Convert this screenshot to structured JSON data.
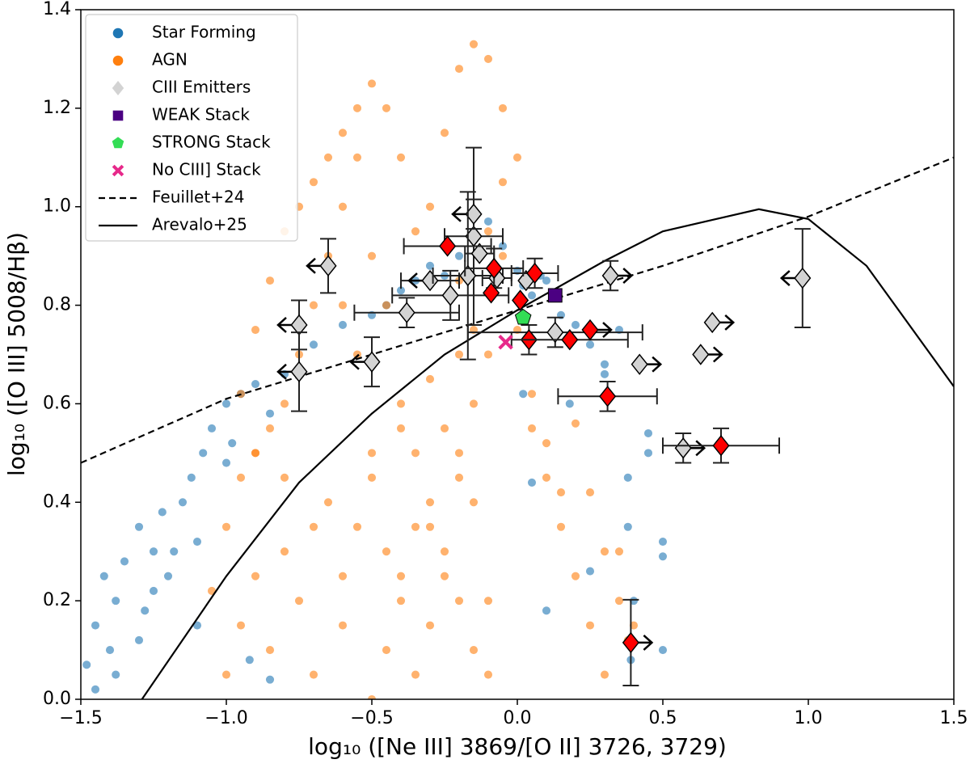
{
  "chart_data": {
    "type": "scatter",
    "x_label": "log₁₀ ([Ne III] 3869/[O II] 3726, 3729)",
    "y_label": "log₁₀ ([O III] 5008/Hβ)",
    "xlim": [
      -1.5,
      1.5
    ],
    "ylim": [
      0,
      1.4
    ],
    "xticks": [
      {
        "value": -1.5,
        "label": "−1.5"
      },
      {
        "value": -1.0,
        "label": "−1.0"
      },
      {
        "value": -0.5,
        "label": "−0.5"
      },
      {
        "value": 0,
        "label": "0.0"
      },
      0.5,
      {
        "value": 1,
        "label": "1.0"
      },
      1.5
    ],
    "yticks": [
      {
        "value": 0,
        "label": "0.0"
      },
      0.2,
      0.4,
      0.6,
      0.8,
      {
        "value": 1,
        "label": "1.0"
      },
      1.2,
      1.4
    ],
    "legend": "upper left",
    "series": [
      {
        "name": "Star Forming",
        "type": "scatter",
        "marker": "circle",
        "color": "#1f77b4",
        "x": [
          -1.48,
          -1.45,
          -1.42,
          -1.4,
          -1.38,
          -1.35,
          -1.3,
          -1.28,
          -1.25,
          -1.22,
          -1.2,
          -1.15,
          -1.12,
          -1.1,
          -1.08,
          -1.05,
          -1.0,
          -0.98,
          -0.95,
          -0.9,
          -0.85,
          -0.8,
          -0.7,
          -0.6,
          -0.5,
          -0.45,
          -0.4,
          -0.35,
          -0.3,
          -0.25,
          -0.2,
          -0.15,
          -0.1,
          -0.05,
          0.0,
          0.02,
          0.05,
          0.08,
          0.1,
          0.15,
          0.2,
          0.25,
          0.3,
          0.35,
          0.38,
          0.4,
          0.45,
          0.5,
          0.02,
          0.05,
          0.1,
          0.18,
          0.25,
          0.3,
          0.38,
          0.39,
          0.45,
          0.5,
          0.5,
          -1.45,
          -1.38,
          -1.3,
          -1.25,
          -1.18,
          -1.1,
          -1.0,
          -0.92,
          -0.85
        ],
        "values": [
          0.07,
          0.15,
          0.25,
          0.1,
          0.2,
          0.28,
          0.35,
          0.18,
          0.3,
          0.38,
          0.25,
          0.4,
          0.45,
          0.32,
          0.5,
          0.55,
          0.6,
          0.52,
          0.62,
          0.64,
          0.58,
          0.66,
          0.72,
          0.76,
          0.78,
          0.8,
          0.83,
          0.85,
          0.88,
          0.86,
          0.9,
          0.95,
          0.97,
          0.92,
          0.87,
          0.84,
          0.82,
          0.86,
          0.85,
          0.78,
          0.76,
          0.72,
          0.68,
          0.75,
          0.35,
          0.2,
          0.54,
          0.32,
          0.62,
          0.44,
          0.18,
          0.6,
          0.26,
          0.66,
          0.45,
          0.08,
          0.5,
          0.29,
          0.1,
          0.02,
          0.05,
          0.12,
          0.22,
          0.3,
          0.15,
          0.48,
          0.08,
          0.04
        ]
      },
      {
        "name": "AGN",
        "type": "scatter",
        "marker": "circle",
        "color": "#ff7f0e",
        "x": [
          -1.0,
          -0.95,
          -0.9,
          -0.85,
          -0.8,
          -0.75,
          -0.7,
          -0.65,
          -0.6,
          -0.55,
          -1.0,
          -0.95,
          -0.9,
          -0.85,
          -0.8,
          -0.75,
          -0.7,
          -0.65,
          -0.6,
          -0.55,
          -1.05,
          -0.95,
          -0.9,
          -0.85,
          -0.8,
          -0.75,
          -0.7,
          -0.65,
          -0.6,
          -0.55,
          -0.5,
          -0.45,
          -0.4,
          -0.35,
          -0.3,
          -0.25,
          -0.2,
          -0.15,
          -0.1,
          -0.05,
          -0.5,
          -0.45,
          -0.4,
          -0.35,
          -0.3,
          -0.25,
          -0.2,
          -0.15,
          -0.1,
          -0.05,
          -0.5,
          -0.45,
          -0.4,
          -0.35,
          -0.3,
          -0.25,
          -0.2,
          -0.15,
          -0.1,
          -0.05,
          0.0,
          0.05,
          0.1,
          0.15,
          0.2,
          0.25,
          0.3,
          0.35,
          0.4,
          -0.2,
          -0.6,
          -0.55,
          -0.5,
          -0.45,
          -0.4,
          -0.35,
          -0.3,
          -0.25,
          -0.2,
          -0.15,
          -0.9,
          -0.8,
          -0.7,
          -0.6,
          -0.5,
          -0.4,
          -0.3,
          -0.2,
          -0.1,
          0.0,
          0.05,
          0.1,
          0.15,
          0.2,
          0.25,
          0.3,
          0.35,
          0.38,
          -0.15,
          -0.1
        ],
        "values": [
          0.05,
          0.15,
          0.25,
          0.1,
          0.3,
          0.2,
          0.05,
          0.4,
          0.15,
          0.35,
          0.35,
          0.45,
          0.5,
          0.55,
          0.6,
          0.7,
          0.8,
          0.9,
          1.0,
          1.1,
          0.22,
          0.62,
          0.75,
          0.85,
          0.95,
          1.0,
          1.05,
          1.1,
          1.15,
          1.2,
          1.25,
          1.2,
          1.1,
          0.95,
          1.0,
          1.15,
          1.28,
          1.33,
          1.3,
          1.2,
          0.9,
          0.8,
          0.6,
          0.5,
          0.4,
          0.3,
          0.2,
          0.1,
          0.05,
          1.05,
          0.0,
          0.1,
          0.25,
          0.35,
          0.15,
          0.55,
          0.45,
          0.6,
          0.7,
          0.9,
          0.75,
          0.55,
          0.45,
          0.35,
          0.25,
          0.15,
          0.05,
          0.3,
          0.15,
          0.7,
          0.8,
          0.7,
          0.5,
          0.3,
          0.2,
          0.05,
          0.35,
          0.25,
          0.5,
          0.4,
          0.5,
          0.45,
          0.35,
          0.25,
          0.45,
          0.55,
          0.65,
          0.85,
          0.95,
          1.1,
          0.62,
          0.52,
          0.42,
          0.56,
          0.42,
          0.3,
          0.2,
          0.12,
          0.75,
          0.2
        ]
      },
      {
        "name": "CIII Emitters",
        "type": "scatter",
        "marker": "diamond",
        "color": "#d3d3d3",
        "point_colors": [
          "#d3d3d3",
          "#d3d3d3",
          "#d3d3d3",
          "#d3d3d3",
          "#d3d3d3",
          "#d3d3d3",
          "#d3d3d3",
          "#d3d3d3",
          "#d3d3d3",
          "#d3d3d3",
          "#d3d3d3",
          "#d3d3d3",
          "#d3d3d3",
          "#d3d3d3",
          "#d3d3d3",
          "#d3d3d3",
          "#d3d3d3",
          "#d3d3d3",
          "#d3d3d3",
          "#d3d3d3",
          "#ff0000",
          "#ff0000",
          "#ff0000",
          "#ff0000",
          "#ff0000",
          "#ff0000",
          "#ff0000",
          "#ff0000",
          "#ff0000",
          "#ff0000",
          "#ff0000"
        ],
        "x": [
          -0.65,
          -0.75,
          -0.75,
          -0.5,
          -0.15,
          -0.15,
          -0.38,
          -0.3,
          -0.23,
          -0.17,
          -0.13,
          -0.07,
          0.13,
          0.32,
          0.98,
          0.67,
          0.63,
          0.42,
          0.57,
          0.03,
          -0.24,
          -0.08,
          -0.09,
          0.06,
          0.01,
          0.04,
          0.18,
          0.25,
          0.31,
          0.7,
          0.39
        ],
        "values": [
          0.88,
          0.76,
          0.665,
          0.685,
          0.94,
          0.985,
          0.785,
          0.85,
          0.82,
          0.86,
          0.905,
          0.855,
          0.745,
          0.86,
          0.855,
          0.765,
          0.7,
          0.68,
          0.51,
          0.85,
          0.92,
          0.875,
          0.825,
          0.865,
          0.81,
          0.73,
          0.73,
          0.75,
          0.615,
          0.515,
          0.115
        ],
        "xerr": [
          null,
          null,
          null,
          null,
          0.1,
          null,
          0.18,
          0.1,
          0.2,
          0.12,
          0.05,
          0.05,
          0.3,
          null,
          null,
          null,
          null,
          null,
          null,
          null,
          0.15,
          0.1,
          null,
          0.08,
          null,
          null,
          0.2,
          null,
          0.17,
          0.2,
          null
        ],
        "yerr": [
          0.055,
          0.05,
          0.08,
          0.05,
          0.18,
          0.03,
          0.03,
          null,
          0.05,
          0.17,
          null,
          null,
          0.03,
          0.03,
          0.1,
          null,
          null,
          null,
          0.03,
          null,
          null,
          0.04,
          null,
          0.03,
          null,
          0.03,
          null,
          null,
          0.03,
          0.035,
          0.087
        ],
        "x_limit": [
          "upper",
          "upper",
          "upper",
          "upper",
          null,
          "upper",
          null,
          "upper",
          null,
          null,
          null,
          null,
          null,
          "lower",
          "upper",
          "lower",
          "lower",
          "lower",
          "lower",
          null,
          null,
          null,
          null,
          null,
          null,
          null,
          null,
          "lower",
          null,
          null,
          "lower"
        ]
      },
      {
        "name": "WEAK Stack",
        "type": "scatter",
        "marker": "square",
        "color": "#4b0082",
        "x": [
          0.13
        ],
        "values": [
          0.82
        ]
      },
      {
        "name": "STRONG Stack",
        "type": "scatter",
        "marker": "pentagon",
        "color": "#33dd55",
        "x": [
          0.02
        ],
        "values": [
          0.775
        ]
      },
      {
        "name": "No CIII] Stack",
        "type": "scatter",
        "marker": "x",
        "color": "#e7298a",
        "x": [
          -0.04
        ],
        "values": [
          0.725
        ]
      },
      {
        "name": "Feuillet+24",
        "type": "line",
        "linestyle": "dashed",
        "color": "#000000",
        "x": [
          -1.5,
          -1.0,
          -0.5,
          0.0,
          0.5,
          1.0,
          1.5
        ],
        "values": [
          0.48,
          0.61,
          0.7,
          0.79,
          0.88,
          0.98,
          1.1
        ]
      },
      {
        "name": "Arevalo+25",
        "type": "line",
        "linestyle": "solid",
        "color": "#000000",
        "x": [
          -1.29,
          -1.0,
          -0.75,
          -0.5,
          -0.25,
          0.0,
          0.3,
          0.5,
          0.83,
          1.0,
          1.2,
          1.5
        ],
        "values": [
          0.0,
          0.25,
          0.44,
          0.58,
          0.7,
          0.79,
          0.89,
          0.95,
          0.995,
          0.975,
          0.88,
          0.635
        ]
      }
    ]
  }
}
